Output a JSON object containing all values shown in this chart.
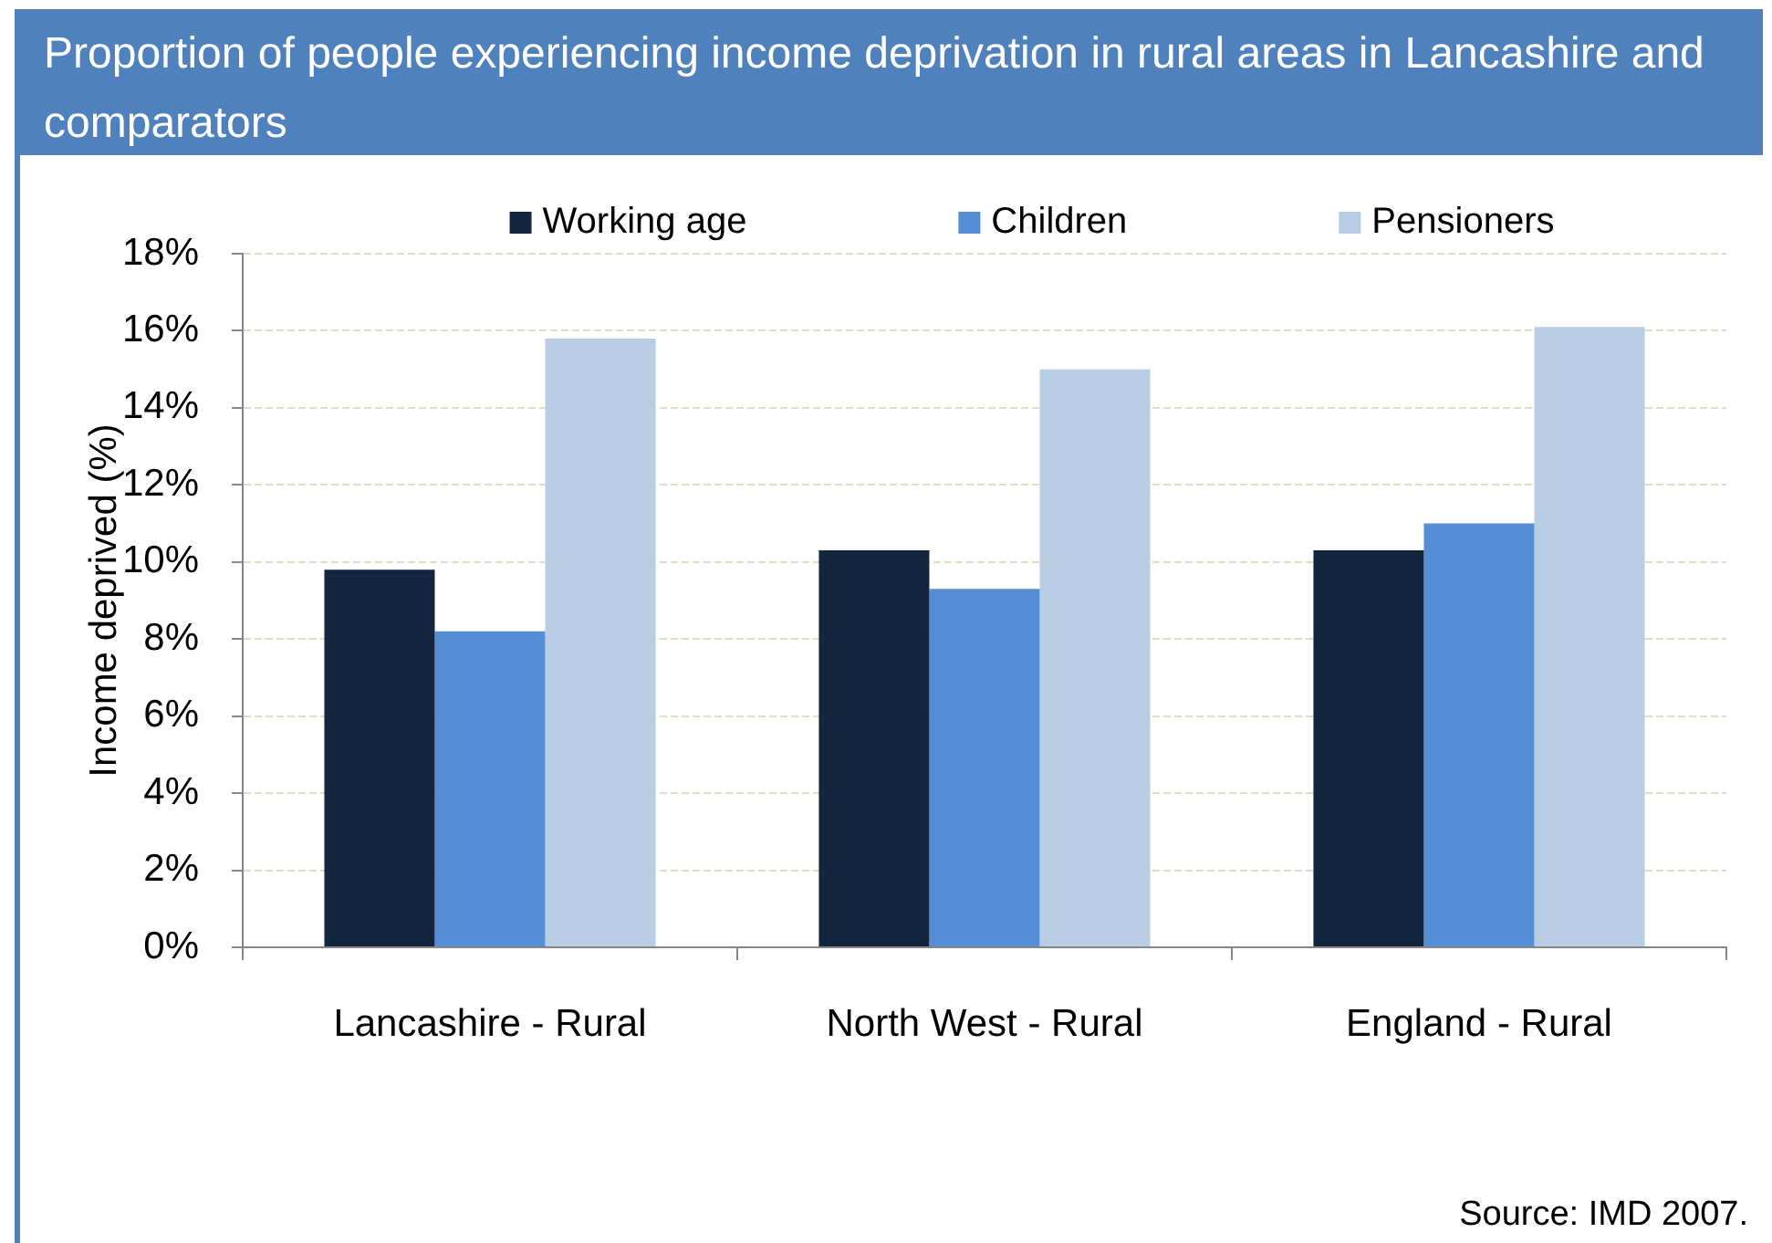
{
  "chart_data": {
    "type": "bar",
    "title": "Proportion of people experiencing income deprivation in rural areas in Lancashire and comparators",
    "ylabel": "Income deprived (%)",
    "categories": [
      "Lancashire - Rural",
      "North West - Rural",
      "England - Rural"
    ],
    "series": [
      {
        "name": "Working age",
        "color": "#14263f",
        "values": [
          9.8,
          10.3,
          10.3
        ]
      },
      {
        "name": "Children",
        "color": "#558ed5",
        "values": [
          8.2,
          9.3,
          11.0
        ]
      },
      {
        "name": "Pensioners",
        "color": "#b9cde5",
        "values": [
          15.8,
          15.0,
          16.1
        ]
      }
    ],
    "ylim": [
      0,
      18
    ],
    "yticks": [
      {
        "value": 0,
        "label": "0%"
      },
      {
        "value": 2,
        "label": "2%"
      },
      {
        "value": 4,
        "label": "4%"
      },
      {
        "value": 6,
        "label": "6%"
      },
      {
        "value": 8,
        "label": "8%"
      },
      {
        "value": 10,
        "label": "10%"
      },
      {
        "value": 12,
        "label": "12%"
      },
      {
        "value": 14,
        "label": "14%"
      },
      {
        "value": 16,
        "label": "16%"
      },
      {
        "value": 18,
        "label": "18%"
      }
    ],
    "grid": "y",
    "legend": "top",
    "annotations": [
      "Source: IMD 2007."
    ]
  }
}
